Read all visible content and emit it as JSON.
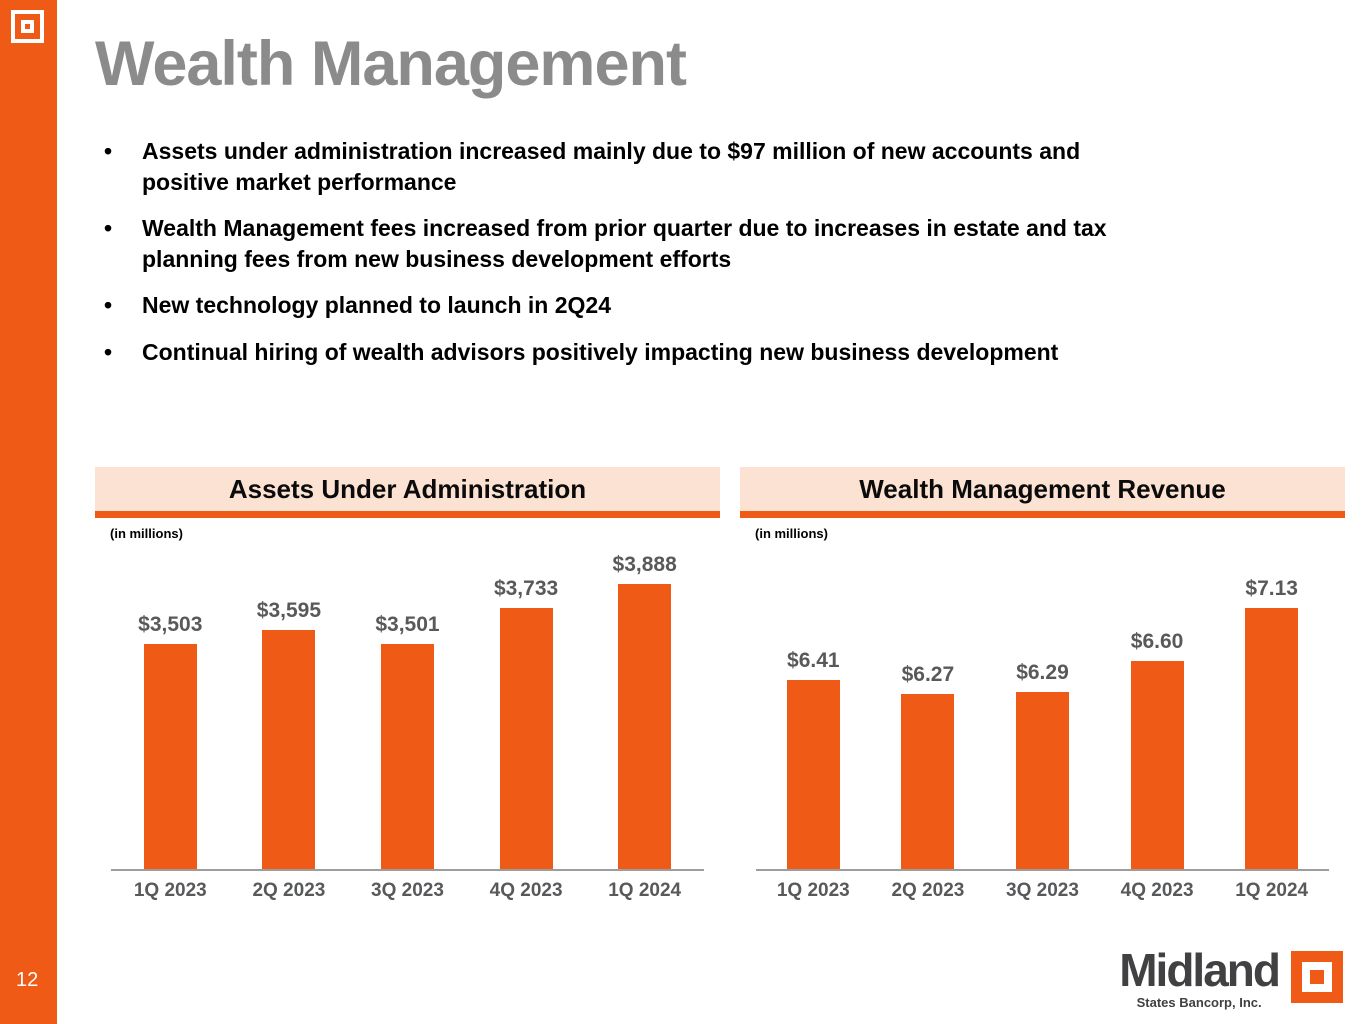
{
  "slide": {
    "title": "Wealth Management",
    "page_number": "12",
    "bullets": [
      "Assets under administration increased mainly due to $97 million of new accounts and\npositive market performance",
      "Wealth Management fees increased from prior quarter due to increases in estate and tax\nplanning fees from new business development efforts",
      "New technology planned to launch in 2Q24",
      "Continual hiring of wealth advisors positively impacting new business development"
    ],
    "bullet_glyph": "•"
  },
  "brand": {
    "wordmark": "Midland",
    "subtitle": "States Bancorp, Inc."
  },
  "colors": {
    "accent_orange": "#EF5A16",
    "header_band_peach": "#FBE2D2",
    "title_gray": "#8B8B8B",
    "chart_text_gray": "#58595B",
    "axis_line_gray": "#9D9D9D"
  },
  "chart_data": [
    {
      "type": "bar",
      "title": "Assets Under Administration",
      "units_note": "(in millions)",
      "categories": [
        "1Q 2023",
        "2Q 2023",
        "3Q 2023",
        "4Q 2023",
        "1Q 2024"
      ],
      "values": [
        3503,
        3595,
        3501,
        3733,
        3888
      ],
      "value_labels": [
        "$3,503",
        "$3,595",
        "$3,501",
        "$3,733",
        "$3,888"
      ],
      "ylim": [
        2050,
        4180
      ],
      "bar_color": "#EF5A16",
      "grid": false,
      "legend": "none",
      "value_labels_position": "above-bars"
    },
    {
      "type": "bar",
      "title": "Wealth Management Revenue",
      "units_note": "(in millions)",
      "categories": [
        "1Q 2023",
        "2Q 2023",
        "3Q 2023",
        "4Q 2023",
        "1Q 2024"
      ],
      "values": [
        6.41,
        6.27,
        6.29,
        6.6,
        7.13
      ],
      "value_labels": [
        "$6.41",
        "$6.27",
        "$6.29",
        "$6.60",
        "$7.13"
      ],
      "ylim": [
        4.5,
        7.83
      ],
      "bar_color": "#EF5A16",
      "grid": false,
      "legend": "none",
      "value_labels_position": "above-bars"
    }
  ]
}
